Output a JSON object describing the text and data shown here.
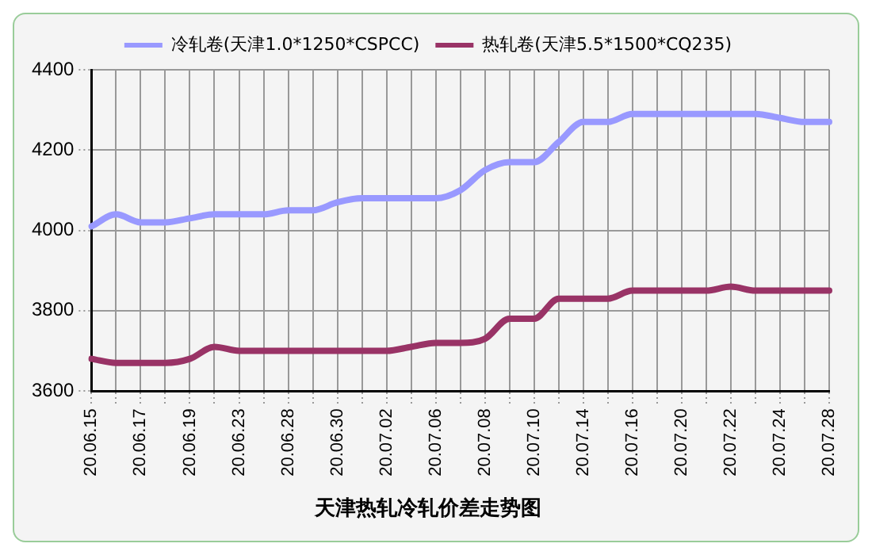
{
  "chart_data": {
    "type": "line",
    "title": "天津热轧冷轧价差走势图",
    "categories": [
      "20.06.15",
      null,
      "20.06.17",
      null,
      "20.06.19",
      null,
      "20.06.23",
      null,
      "20.06.28",
      null,
      "20.06.30",
      null,
      "20.07.02",
      null,
      "20.07.06",
      null,
      "20.07.08",
      null,
      "20.07.10",
      null,
      "20.07.14",
      null,
      "20.07.16",
      null,
      "20.07.20",
      null,
      "20.07.22",
      null,
      "20.07.24",
      null,
      "20.07.28"
    ],
    "series": [
      {
        "name": "冷轧卷(天津1.0*1250*CSPCC)",
        "color": "#9999ff",
        "values": [
          4010,
          4040,
          4020,
          4020,
          4030,
          4040,
          4040,
          4040,
          4050,
          4050,
          4070,
          4080,
          4080,
          4080,
          4080,
          4100,
          4150,
          4170,
          4170,
          4220,
          4270,
          4270,
          4290,
          4290,
          4290,
          4290,
          4290,
          4290,
          4280,
          4270,
          4270
        ]
      },
      {
        "name": "热轧卷(天津5.5*1500*CQ235)",
        "color": "#993366",
        "values": [
          3680,
          3670,
          3670,
          3670,
          3680,
          3710,
          3700,
          3700,
          3700,
          3700,
          3700,
          3700,
          3700,
          3710,
          3720,
          3720,
          3730,
          3780,
          3780,
          3830,
          3830,
          3830,
          3850,
          3850,
          3850,
          3850,
          3860,
          3850,
          3850,
          3850,
          3850
        ]
      }
    ],
    "ylim": [
      3600,
      4400
    ],
    "yticks": [
      3600,
      3800,
      4000,
      4200,
      4400
    ],
    "grid": true,
    "legend": "top",
    "marker": "none",
    "line_style": "solid"
  }
}
